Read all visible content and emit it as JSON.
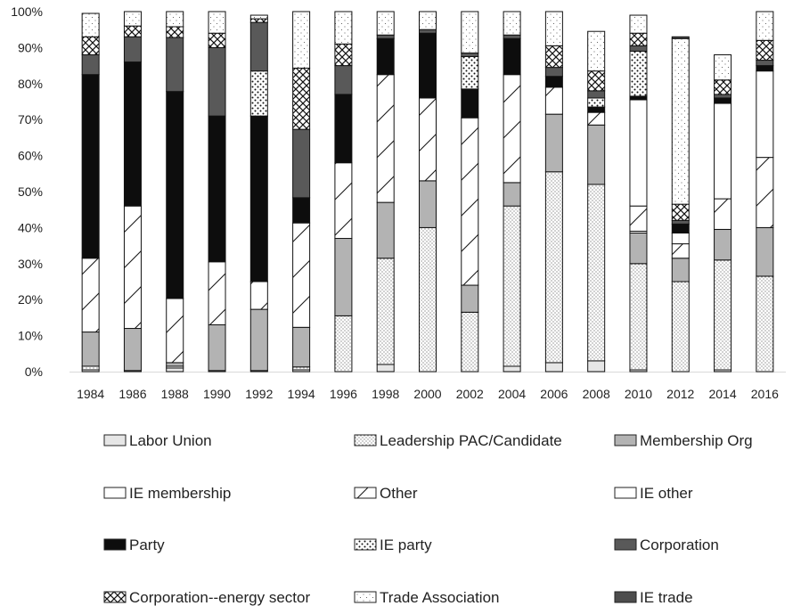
{
  "chart_data": {
    "type": "bar",
    "stacked": true,
    "title": "",
    "xlabel": "",
    "ylabel": "",
    "ylim": [
      0,
      100
    ],
    "y_tick_labels": [
      "0%",
      "10%",
      "20%",
      "30%",
      "40%",
      "50%",
      "60%",
      "70%",
      "80%",
      "90%",
      "100%"
    ],
    "y_tick_values": [
      0,
      10,
      20,
      30,
      40,
      50,
      60,
      70,
      80,
      90,
      100
    ],
    "grid": false,
    "legend_position": "bottom",
    "categories": [
      "1984",
      "1986",
      "1988",
      "1990",
      "1992",
      "1994",
      "1996",
      "1998",
      "2000",
      "2002",
      "2004",
      "2006",
      "2008",
      "2010",
      "2012",
      "2014",
      "2016"
    ],
    "series": [
      {
        "name": "Labor Union",
        "pattern": "solid-light",
        "color": "#e6e6e6",
        "values": [
          0.5,
          0,
          1,
          0,
          0,
          0.5,
          0,
          2,
          0,
          0,
          1.5,
          2.5,
          3,
          0.5,
          0,
          0.5,
          0
        ]
      },
      {
        "name": "Leadership PAC/Candidate",
        "pattern": "dense-dots",
        "color": "#ffffff",
        "values": [
          1,
          0.3,
          0.5,
          0.3,
          0.3,
          0.8,
          15.5,
          29.5,
          40,
          16.5,
          44.5,
          53,
          49,
          29.5,
          25,
          30.5,
          26.5
        ]
      },
      {
        "name": "Membership Org",
        "pattern": "solid",
        "color": "#b3b3b3",
        "values": [
          9.5,
          11.7,
          1,
          12.7,
          17,
          11,
          21.5,
          15.5,
          13,
          7.5,
          6.5,
          16,
          16.5,
          8.5,
          6.5,
          8.5,
          13.5
        ]
      },
      {
        "name": "IE membership",
        "pattern": "white-outline",
        "color": "#ffffff",
        "values": [
          0,
          0,
          0,
          0,
          0,
          0,
          0,
          0,
          0,
          0,
          0,
          0,
          0,
          0.5,
          0,
          0,
          0
        ]
      },
      {
        "name": "Other",
        "pattern": "diagonal",
        "color": "#ffffff",
        "values": [
          20.5,
          34,
          17.8,
          17.5,
          7.7,
          29,
          21,
          35.5,
          23,
          46.5,
          30,
          7.5,
          3.5,
          7,
          4,
          8.5,
          19.5
        ]
      },
      {
        "name": "IE other",
        "pattern": "white",
        "color": "#ffffff",
        "values": [
          0,
          0,
          0,
          0,
          0,
          0,
          0,
          0,
          0,
          0,
          0,
          0,
          0,
          29.5,
          3,
          26.5,
          24
        ]
      },
      {
        "name": "Party",
        "pattern": "solid",
        "color": "#0d0d0d",
        "values": [
          51,
          40,
          57.5,
          40.5,
          46,
          7,
          19,
          10,
          18,
          8,
          10,
          3,
          1.5,
          1,
          2.5,
          1.5,
          1.5
        ]
      },
      {
        "name": "IE party",
        "pattern": "sparse-dots",
        "color": "#ffffff",
        "values": [
          0,
          0,
          0,
          0,
          12.5,
          0,
          0,
          0,
          0,
          9,
          0,
          0,
          2.5,
          12.5,
          0,
          0,
          0
        ]
      },
      {
        "name": "Corporation",
        "pattern": "solid",
        "color": "#595959",
        "values": [
          5.5,
          7,
          15,
          19,
          13.5,
          19,
          8,
          1,
          1,
          1,
          1,
          2.5,
          2,
          1.5,
          1,
          1,
          1.5
        ]
      },
      {
        "name": "Corporation--energy sector",
        "pattern": "crosshatch",
        "color": "#ffffff",
        "values": [
          5,
          3,
          3,
          4,
          1,
          17,
          6,
          0,
          0,
          0,
          0,
          6,
          5.5,
          3.5,
          4.5,
          4,
          5.5
        ]
      },
      {
        "name": "Trade Association",
        "pattern": "light-dots",
        "color": "#ffffff",
        "values": [
          6.5,
          4,
          4.2,
          6,
          1,
          15.7,
          9,
          6.5,
          5,
          11.5,
          6.5,
          9.5,
          11,
          5,
          46,
          7,
          8
        ]
      },
      {
        "name": "IE trade",
        "pattern": "solid",
        "color": "#4d4d4d",
        "values": [
          0,
          0,
          0,
          0,
          0,
          0,
          0,
          0,
          0,
          0,
          0,
          0,
          0,
          0,
          0.5,
          0,
          0
        ]
      }
    ]
  }
}
